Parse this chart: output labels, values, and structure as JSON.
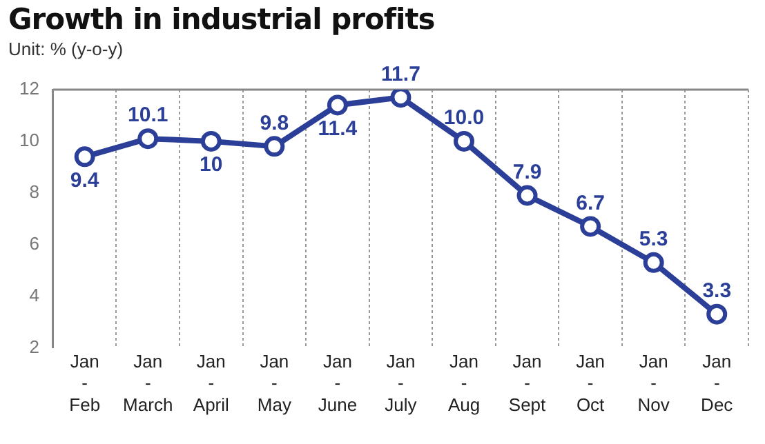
{
  "chart_data": {
    "type": "line",
    "title": "Growth in industrial profits",
    "subtitle": "Unit: % (y-o-y)",
    "categories": [
      "Jan\n-\nFeb",
      "Jan\n-\nMarch",
      "Jan\n-\nApril",
      "Jan\n-\nMay",
      "Jan\n-\nJune",
      "Jan\n-\nJuly",
      "Jan\n-\nAug",
      "Jan\n-\nSept",
      "Jan\n-\nOct",
      "Jan\n-\nNov",
      "Jan\n-\nDec"
    ],
    "values": [
      9.4,
      10.1,
      10,
      9.8,
      11.4,
      11.7,
      10.0,
      7.9,
      6.7,
      5.3,
      3.3
    ],
    "value_labels": [
      "9.4",
      "10.1",
      "10",
      "9.8",
      "11.4",
      "11.7",
      "10.0",
      "7.9",
      "6.7",
      "5.3",
      "3.3"
    ],
    "color": "#2b3f98",
    "marker": "circle",
    "line_style": "solid",
    "ylim": [
      2,
      12
    ],
    "yticks": [
      2,
      4,
      6,
      8,
      10,
      12
    ],
    "grid": "x",
    "legend": false
  }
}
